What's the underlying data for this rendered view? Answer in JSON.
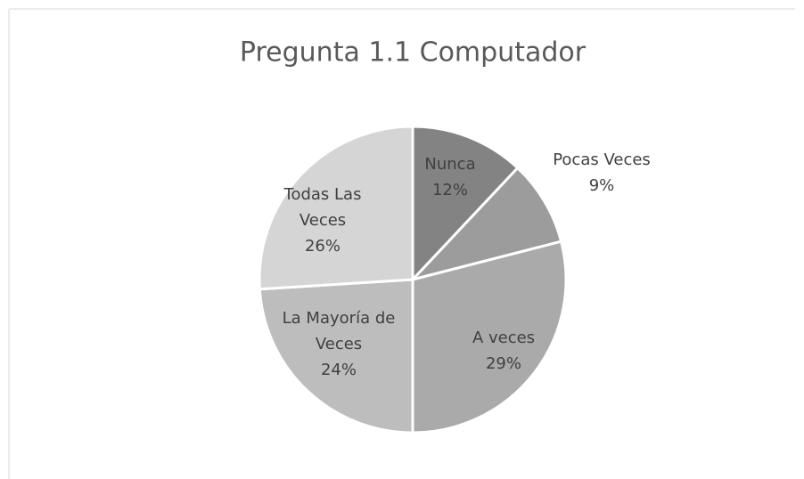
{
  "chart_data": {
    "type": "pie",
    "title": "Pregunta 1.1 Computador",
    "categories": [
      "Nunca",
      "Pocas Veces",
      "A veces",
      "La Mayoría de Veces",
      "Todas Las Veces"
    ],
    "values": [
      12,
      9,
      29,
      24,
      26
    ],
    "value_labels": [
      "12%",
      "9%",
      "29%",
      "24%",
      "26%"
    ],
    "colors": [
      "#838383",
      "#9c9c9c",
      "#aaaaaa",
      "#bdbdbd",
      "#d5d5d5"
    ]
  }
}
